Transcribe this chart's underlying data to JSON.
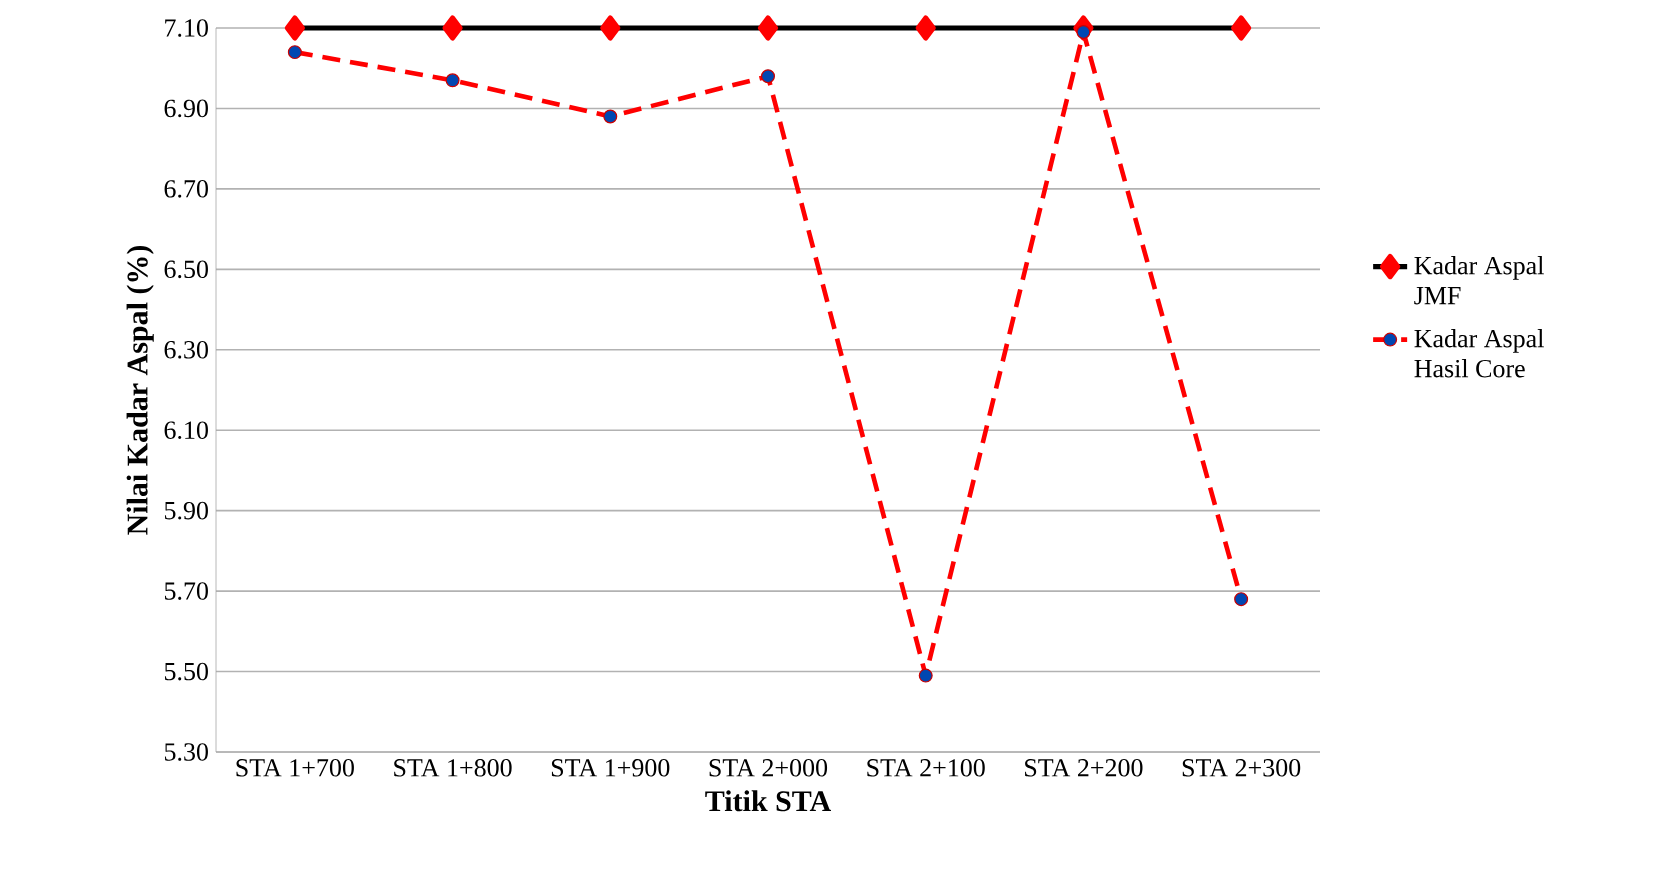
{
  "chart_data": {
    "type": "line",
    "xlabel": "Titik STA",
    "ylabel": "Nilai Kadar Aspal (%)",
    "categories": [
      "STA 1+700",
      "STA 1+800",
      "STA 1+900",
      "STA 2+000",
      "STA 2+100",
      "STA 2+200",
      "STA 2+300"
    ],
    "series": [
      {
        "name": "Kadar Aspal JMF",
        "color": "#000000",
        "marker": "diamond",
        "line_style": "solid",
        "values": [
          7.1,
          7.1,
          7.1,
          7.1,
          7.1,
          7.1,
          7.1
        ]
      },
      {
        "name": "Kadar Aspal Hasil Core",
        "color": "#ff0000",
        "marker": "circle",
        "line_style": "dashed",
        "values": [
          7.04,
          6.97,
          6.88,
          6.98,
          5.49,
          7.09,
          5.68
        ]
      }
    ],
    "ylim": [
      5.3,
      7.1
    ],
    "yticks": [
      {
        "value": 5.3,
        "label": "5.30"
      },
      {
        "value": 5.5,
        "label": "5.50"
      },
      {
        "value": 5.7,
        "label": "5.70"
      },
      {
        "value": 5.9,
        "label": "5.90"
      },
      {
        "value": 6.1,
        "label": "6.10"
      },
      {
        "value": 6.3,
        "label": "6.30"
      },
      {
        "value": 6.5,
        "label": "6.50"
      },
      {
        "value": 6.7,
        "label": "6.70"
      },
      {
        "value": 6.9,
        "label": "6.90"
      },
      {
        "value": 7.1,
        "label": "7.10"
      }
    ],
    "grid": "y",
    "legend": "right"
  }
}
